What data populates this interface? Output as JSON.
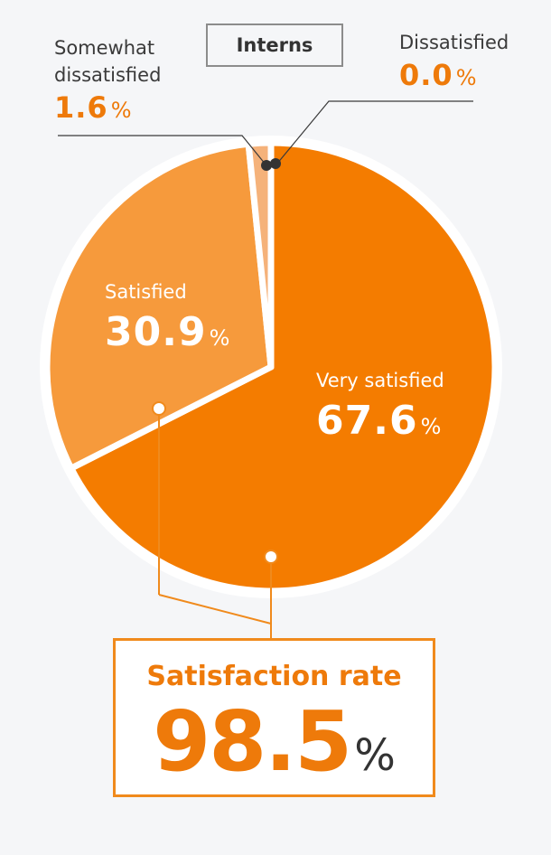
{
  "colors": {
    "very_satisfied": "#f47c00",
    "satisfied": "#f69a3c",
    "somewhat_dissatisfied": "#f5b27a",
    "dissatisfied": "#f7c9a0",
    "accent": "#ee7a0a",
    "connector": "#f08a1c"
  },
  "chart_data": {
    "type": "pie",
    "title": "Interns",
    "slices": [
      {
        "label": "Very satisfied",
        "value": 67.6,
        "display": "67.6",
        "unit": "%"
      },
      {
        "label": "Satisfied",
        "value": 30.9,
        "display": "30.9",
        "unit": "%"
      },
      {
        "label": "Somewhat dissatisfied",
        "value": 1.6,
        "display": "1.6",
        "unit": "%"
      },
      {
        "label": "Dissatisfied",
        "value": 0.0,
        "display": "0.0",
        "unit": "%"
      }
    ],
    "summary": {
      "label": "Satisfaction rate",
      "value": "98.5",
      "unit": "%"
    }
  }
}
